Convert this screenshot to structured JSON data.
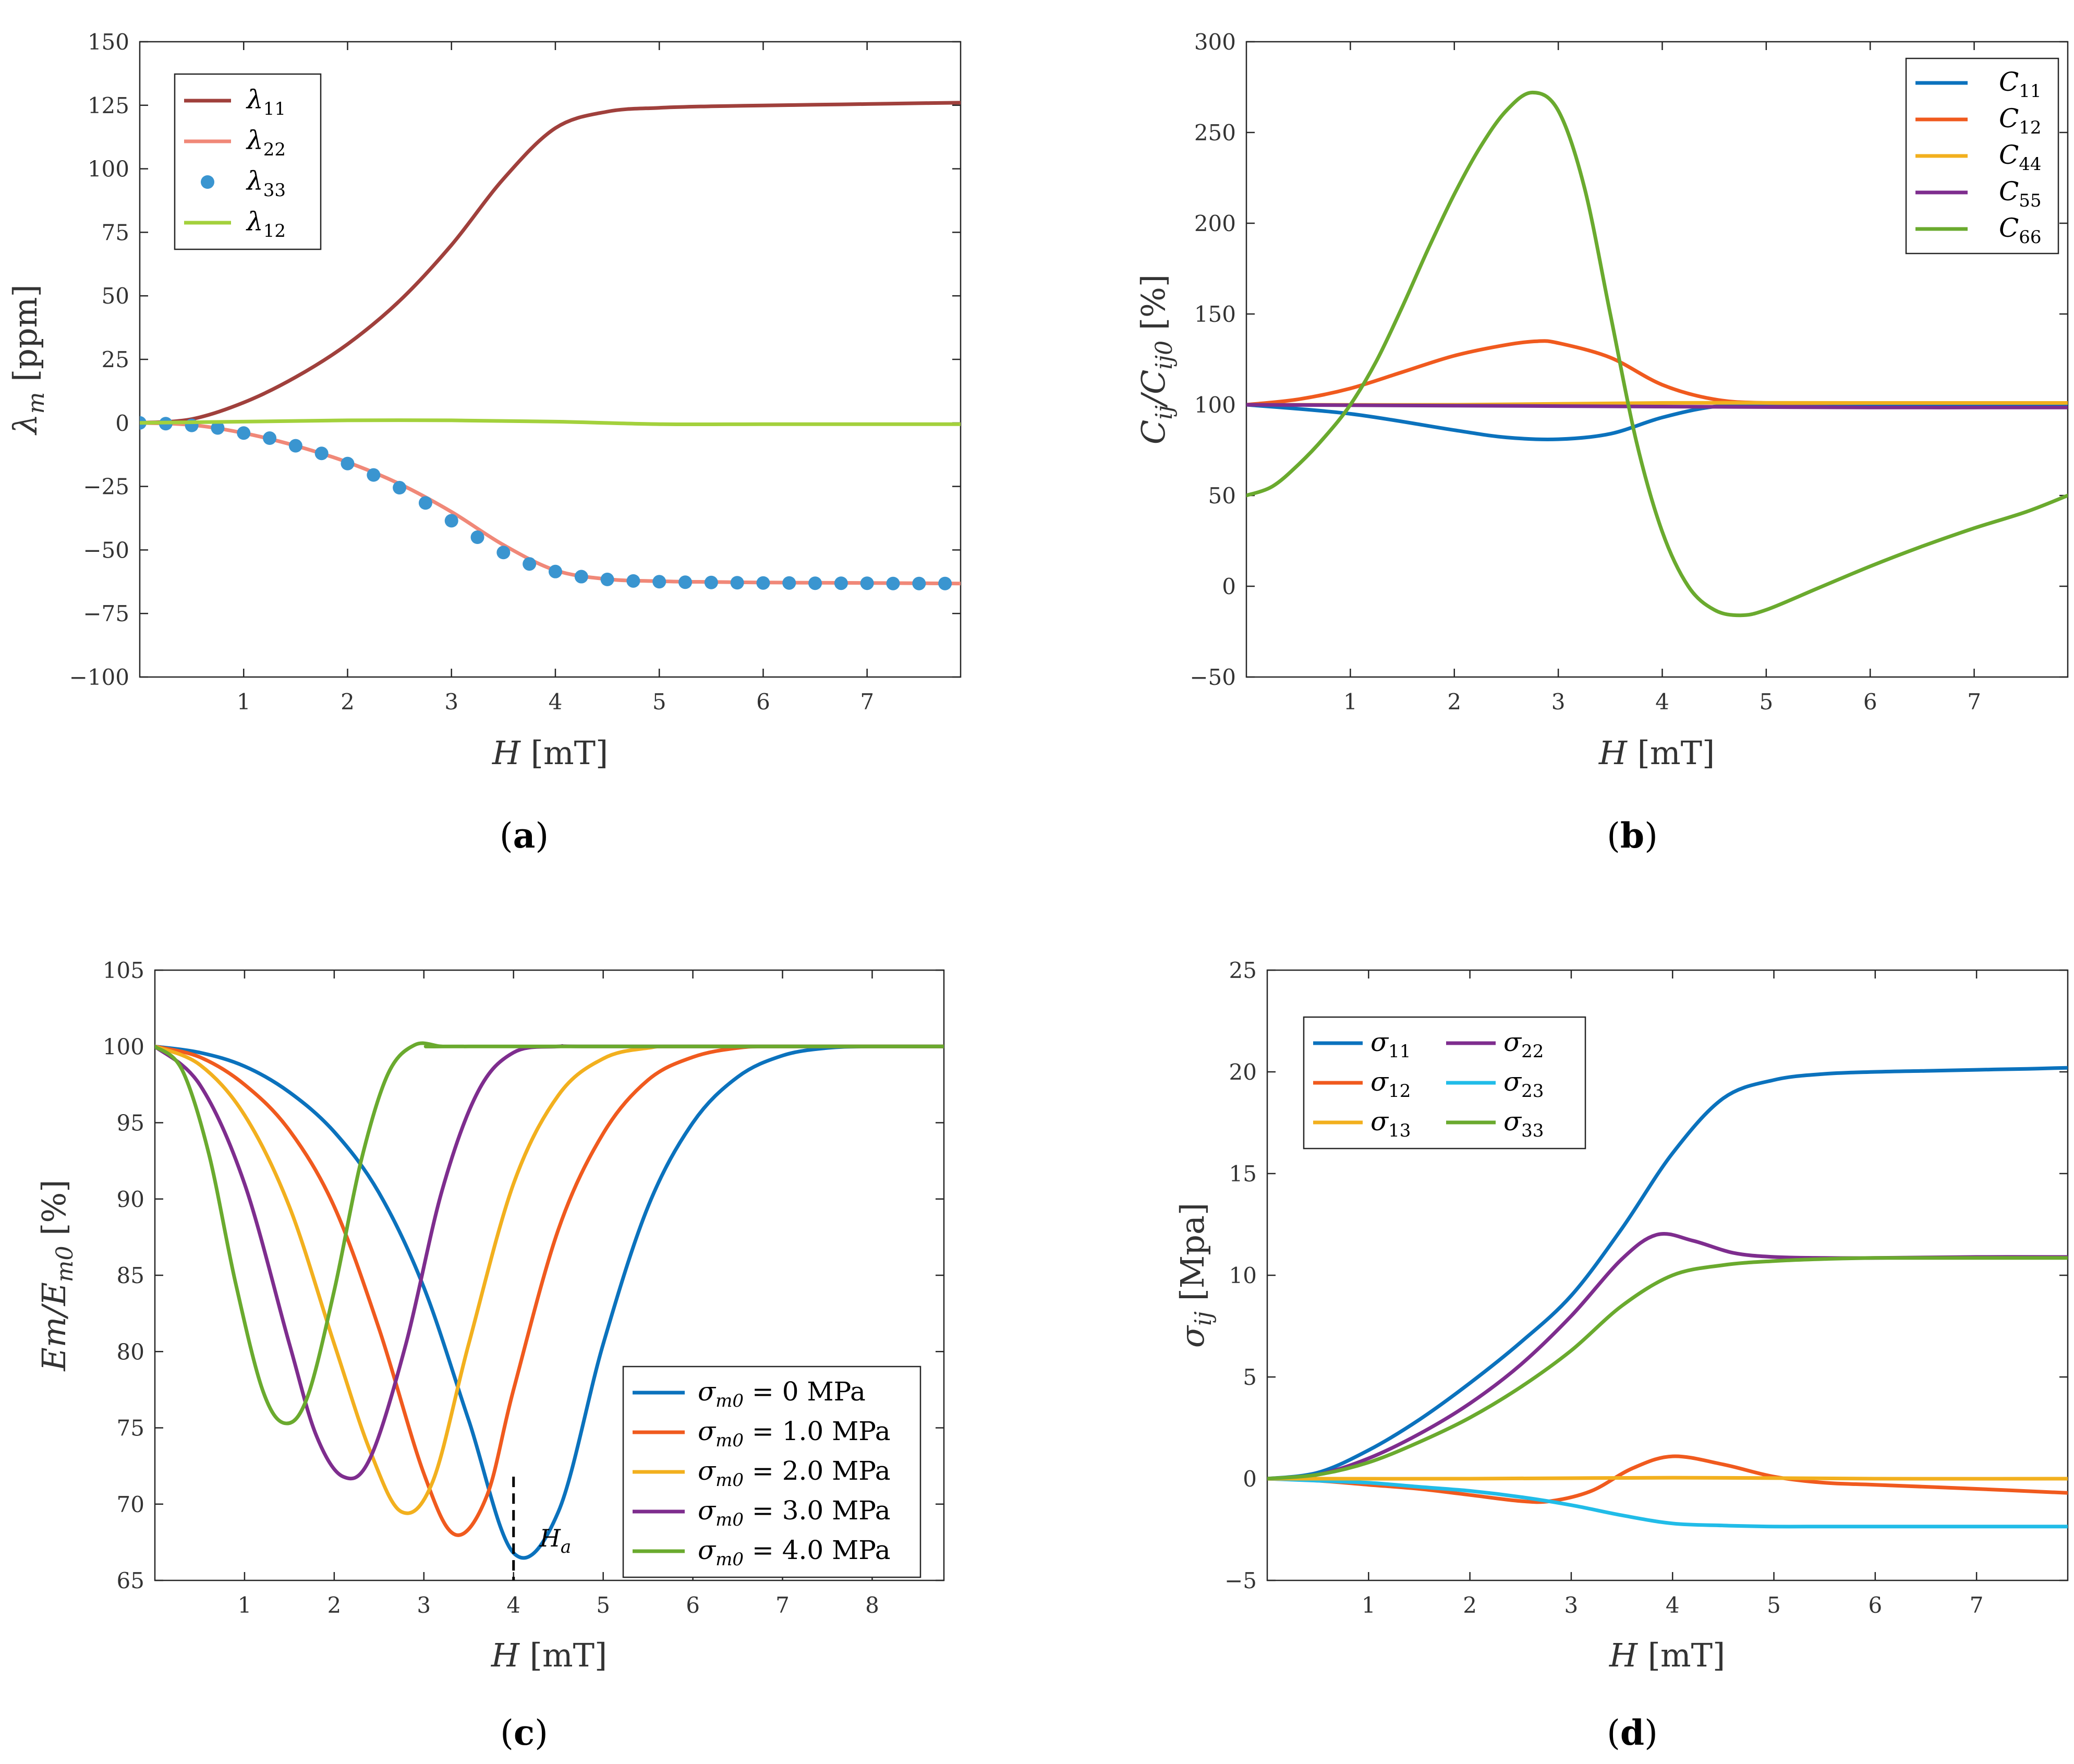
{
  "figure": {
    "panels": [
      {
        "id": "a",
        "caption_open": "(",
        "caption_letter": "a",
        "caption_close": ")"
      },
      {
        "id": "b",
        "caption_open": "(",
        "caption_letter": "b",
        "caption_close": ")"
      },
      {
        "id": "c",
        "caption_open": "(",
        "caption_letter": "c",
        "caption_close": ")"
      },
      {
        "id": "d",
        "caption_open": "(",
        "caption_letter": "d",
        "caption_close": ")"
      }
    ]
  },
  "chart_data": [
    {
      "id": "a",
      "type": "line",
      "xlabel": "H [mT]",
      "ylabel": "λm [ppm]",
      "xlim": [
        0,
        7.9
      ],
      "ylim": [
        -100,
        150
      ],
      "xticks": [
        1,
        2,
        3,
        4,
        5,
        6,
        7
      ],
      "xtick_labels": [
        "1",
        "2",
        "3",
        "4",
        "5",
        "6",
        "7"
      ],
      "yticks": [
        -100,
        -75,
        -50,
        -25,
        0,
        25,
        50,
        75,
        100,
        125,
        150
      ],
      "ytick_labels": [
        "−100",
        "−75",
        "−50",
        "−25",
        "0",
        "25",
        "50",
        "75",
        "100",
        "125",
        "150"
      ],
      "legend_position": "top-left",
      "series": [
        {
          "name": "λ11",
          "color": "#a0403c",
          "style": "line",
          "x": [
            0,
            0.5,
            1,
            1.5,
            2,
            2.5,
            3,
            3.5,
            4,
            4.5,
            5,
            5.5,
            6,
            6.5,
            7,
            7.5,
            7.9
          ],
          "y": [
            0,
            1.5,
            8,
            18,
            31,
            48,
            70,
            96,
            116,
            122.5,
            124,
            124.6,
            124.9,
            125.2,
            125.5,
            125.8,
            126
          ]
        },
        {
          "name": "λ22",
          "color": "#f08878",
          "style": "line",
          "x": [
            0,
            0.5,
            1,
            1.5,
            2,
            2.5,
            3,
            3.5,
            4,
            4.5,
            5,
            5.5,
            6,
            6.5,
            7,
            7.5,
            7.9
          ],
          "y": [
            0,
            -0.8,
            -4,
            -9,
            -15.5,
            -24,
            -35,
            -48,
            -58,
            -61.5,
            -62.3,
            -62.6,
            -62.8,
            -62.9,
            -63,
            -63.1,
            -63.2
          ]
        },
        {
          "name": "λ33",
          "color": "#3a95d0",
          "style": "markers",
          "x": [
            0,
            0.25,
            0.5,
            0.75,
            1,
            1.25,
            1.5,
            1.75,
            2,
            2.25,
            2.5,
            2.75,
            3,
            3.25,
            3.5,
            3.75,
            4,
            4.25,
            4.5,
            4.75,
            5,
            5.25,
            5.5,
            5.75,
            6,
            6.25,
            6.5,
            6.75,
            7,
            7.25,
            7.5,
            7.75
          ],
          "y": [
            0,
            -0.3,
            -1,
            -2,
            -4,
            -6,
            -9,
            -12,
            -16,
            -20.5,
            -25.5,
            -31.5,
            -38.5,
            -45,
            -51,
            -55.5,
            -58.5,
            -60.5,
            -61.6,
            -62.2,
            -62.5,
            -62.7,
            -62.8,
            -62.9,
            -63,
            -63,
            -63.1,
            -63.1,
            -63.1,
            -63.2,
            -63.2,
            -63.2
          ]
        },
        {
          "name": "λ12",
          "color": "#a3d13c",
          "style": "line",
          "x": [
            0,
            1,
            2,
            3,
            4,
            5,
            6,
            7,
            7.9
          ],
          "y": [
            0,
            0.5,
            1,
            1,
            0.5,
            -0.5,
            -0.5,
            -0.5,
            -0.5
          ]
        }
      ],
      "legend": [
        {
          "base": "λ",
          "sub": "11"
        },
        {
          "base": "λ",
          "sub": "22"
        },
        {
          "base": "λ",
          "sub": "33"
        },
        {
          "base": "λ",
          "sub": "12"
        }
      ]
    },
    {
      "id": "b",
      "type": "line",
      "xlabel": "H [mT]",
      "ylabel": "Cij/Cij0 [%]",
      "xlim": [
        0,
        7.9
      ],
      "ylim": [
        -50,
        300
      ],
      "xticks": [
        1,
        2,
        3,
        4,
        5,
        6,
        7
      ],
      "xtick_labels": [
        "1",
        "2",
        "3",
        "4",
        "5",
        "6",
        "7"
      ],
      "yticks": [
        -50,
        0,
        50,
        100,
        150,
        200,
        250,
        300
      ],
      "ytick_labels": [
        "−50",
        "0",
        "50",
        "100",
        "150",
        "200",
        "250",
        "300"
      ],
      "legend_position": "top-right",
      "series": [
        {
          "name": "C11",
          "color": "#0b72bd",
          "style": "line",
          "x": [
            0,
            1,
            2,
            2.5,
            3,
            3.5,
            4,
            4.5,
            5,
            6,
            7,
            7.9
          ],
          "y": [
            100,
            95,
            86,
            82,
            81,
            84,
            93,
            99,
            100,
            100,
            100,
            100
          ]
        },
        {
          "name": "C12",
          "color": "#f05a1e",
          "style": "line",
          "x": [
            0,
            0.5,
            1,
            1.5,
            2,
            2.5,
            2.8,
            3,
            3.5,
            4,
            4.5,
            5,
            6,
            7,
            7.9
          ],
          "y": [
            100,
            103,
            109,
            118,
            127,
            133,
            135,
            134,
            126,
            111,
            103,
            101,
            101,
            101,
            101
          ]
        },
        {
          "name": "C44",
          "color": "#f2b01e",
          "style": "line",
          "x": [
            0,
            2,
            4,
            6,
            7.9
          ],
          "y": [
            100,
            100,
            101,
            101,
            101
          ]
        },
        {
          "name": "C55",
          "color": "#7e2d8e",
          "style": "line",
          "x": [
            0,
            2,
            4,
            6,
            7.9
          ],
          "y": [
            100,
            99.5,
            99,
            98.5,
            98.5
          ]
        },
        {
          "name": "C66",
          "color": "#6aaa2e",
          "style": "line",
          "x": [
            0,
            0.25,
            0.5,
            0.75,
            1,
            1.25,
            1.5,
            1.75,
            2,
            2.25,
            2.5,
            2.75,
            3,
            3.25,
            3.5,
            3.75,
            4,
            4.25,
            4.5,
            4.75,
            5,
            5.5,
            6,
            6.5,
            7,
            7.5,
            7.9
          ],
          "y": [
            50,
            55,
            67,
            82,
            100,
            124,
            154,
            186,
            216,
            242,
            262,
            272,
            262,
            220,
            150,
            80,
            30,
            0,
            -13,
            -16,
            -13,
            -1,
            11,
            22,
            32,
            41,
            50
          ]
        }
      ],
      "legend": [
        {
          "base": "C",
          "sub": "11"
        },
        {
          "base": "C",
          "sub": "12"
        },
        {
          "base": "C",
          "sub": "44"
        },
        {
          "base": "C",
          "sub": "55"
        },
        {
          "base": "C",
          "sub": "66"
        }
      ]
    },
    {
      "id": "c",
      "type": "line",
      "xlabel": "H [mT]",
      "ylabel": "Em/Em0 [%]",
      "xlim": [
        0,
        8.8
      ],
      "ylim": [
        65,
        105
      ],
      "xticks": [
        1,
        2,
        3,
        4,
        5,
        6,
        7,
        8
      ],
      "xtick_labels": [
        "1",
        "2",
        "3",
        "4",
        "5",
        "6",
        "7",
        "8"
      ],
      "yticks": [
        65,
        70,
        75,
        80,
        85,
        90,
        95,
        100,
        105
      ],
      "ytick_labels": [
        "65",
        "70",
        "75",
        "80",
        "85",
        "90",
        "95",
        "100",
        "105"
      ],
      "legend_position": "bottom-right",
      "annotation": {
        "label": "H",
        "sub": "a",
        "x": 4.0,
        "y_top": 71.8,
        "y_bottom": 65
      },
      "series": [
        {
          "name": "σm0 = 0 MPa",
          "color": "#0b72bd",
          "style": "line",
          "x": [
            0,
            0.5,
            1,
            1.5,
            2,
            2.5,
            3,
            3.5,
            4,
            4.5,
            5,
            5.5,
            6,
            6.5,
            7,
            7.5,
            8,
            8.8
          ],
          "y": [
            100,
            99.6,
            98.7,
            97,
            94.4,
            90.4,
            84.2,
            75.5,
            66.8,
            69.5,
            80.5,
            89.5,
            95,
            98,
            99.4,
            99.9,
            100,
            100
          ]
        },
        {
          "name": "σm0 = 1.0 MPa",
          "color": "#f05a1e",
          "style": "line",
          "x": [
            0,
            0.5,
            1,
            1.5,
            2,
            2.5,
            3,
            3.35,
            3.7,
            4,
            4.5,
            5,
            5.5,
            6,
            6.5,
            7,
            8.8
          ],
          "y": [
            100,
            99.3,
            97.5,
            94.5,
            89.5,
            81.5,
            72,
            68,
            70.5,
            77.5,
            88,
            94.3,
            97.8,
            99.3,
            99.9,
            100,
            100
          ]
        },
        {
          "name": "σm0 = 2.0 MPa",
          "color": "#f2b01e",
          "style": "line",
          "x": [
            0,
            0.5,
            1,
            1.5,
            2,
            2.4,
            2.75,
            3.1,
            3.5,
            4,
            4.5,
            5,
            5.5,
            6,
            8.8
          ],
          "y": [
            100,
            98.8,
            95.5,
            89.5,
            80.5,
            73.5,
            69.5,
            71.5,
            80.5,
            91,
            96.8,
            99.2,
            99.9,
            100,
            100
          ]
        },
        {
          "name": "σm0 = 3.0 MPa",
          "color": "#7e2d8e",
          "style": "line",
          "x": [
            0,
            0.5,
            1,
            1.5,
            1.8,
            2.1,
            2.4,
            2.8,
            3.2,
            3.6,
            4,
            4.5,
            5,
            8.8
          ],
          "y": [
            100,
            97.5,
            91,
            80.5,
            74.5,
            71.8,
            73,
            80.5,
            90.5,
            97,
            99.6,
            100,
            100,
            100
          ]
        },
        {
          "name": "σm0 = 4.0 MPa",
          "color": "#6aaa2e",
          "style": "line",
          "x": [
            0,
            0.3,
            0.6,
            0.9,
            1.2,
            1.45,
            1.7,
            2,
            2.3,
            2.6,
            2.9,
            3.2,
            3.5,
            8.8
          ],
          "y": [
            100,
            98.5,
            93,
            84.5,
            77.5,
            75.3,
            77,
            84,
            92.5,
            98.2,
            100.1,
            100,
            100,
            100
          ]
        }
      ],
      "legend": [
        {
          "text": "σm0 = 0 MPa"
        },
        {
          "text": "σm0 = 1.0 MPa"
        },
        {
          "text": "σm0 = 2.0 MPa"
        },
        {
          "text": "σm0 = 3.0 MPa"
        },
        {
          "text": "σm0 = 4.0 MPa"
        }
      ]
    },
    {
      "id": "d",
      "type": "line",
      "xlabel": "H [mT]",
      "ylabel": "σij [Mpa]",
      "xlim": [
        0,
        7.9
      ],
      "ylim": [
        -5,
        25
      ],
      "xticks": [
        1,
        2,
        3,
        4,
        5,
        6,
        7
      ],
      "xtick_labels": [
        "1",
        "2",
        "3",
        "4",
        "5",
        "6",
        "7"
      ],
      "yticks": [
        -5,
        0,
        5,
        10,
        15,
        20,
        25
      ],
      "ytick_labels": [
        "−5",
        "0",
        "5",
        "10",
        "15",
        "20",
        "25"
      ],
      "legend_position": "top-left",
      "series": [
        {
          "name": "σ11",
          "color": "#0b72bd",
          "style": "line",
          "x": [
            0,
            0.5,
            1,
            1.5,
            2,
            2.5,
            3,
            3.5,
            4,
            4.5,
            5,
            5.5,
            6,
            6.5,
            7,
            7.5,
            7.9
          ],
          "y": [
            0,
            0.3,
            1.4,
            2.9,
            4.7,
            6.7,
            9,
            12.3,
            16,
            18.7,
            19.6,
            19.9,
            20,
            20.05,
            20.1,
            20.15,
            20.2
          ]
        },
        {
          "name": "σ22",
          "color": "#7e2d8e",
          "style": "line",
          "x": [
            0,
            0.5,
            1,
            1.5,
            2,
            2.5,
            3,
            3.5,
            3.85,
            4.2,
            4.6,
            5,
            5.5,
            6,
            7,
            7.9
          ],
          "y": [
            0,
            0.2,
            1,
            2.2,
            3.7,
            5.6,
            8,
            10.8,
            12,
            11.7,
            11.1,
            10.9,
            10.85,
            10.85,
            10.9,
            10.9
          ]
        },
        {
          "name": "σ12",
          "color": "#f05a1e",
          "style": "line",
          "x": [
            0,
            0.5,
            1,
            1.5,
            2,
            2.5,
            2.8,
            3.2,
            3.6,
            4,
            4.5,
            5,
            5.5,
            6,
            7,
            7.9
          ],
          "y": [
            0,
            -0.1,
            -0.3,
            -0.5,
            -0.8,
            -1.1,
            -1.1,
            -0.6,
            0.5,
            1.1,
            0.7,
            0.1,
            -0.2,
            -0.3,
            -0.5,
            -0.7
          ]
        },
        {
          "name": "σ23",
          "color": "#21bce8",
          "style": "line",
          "x": [
            0,
            0.5,
            1,
            1.5,
            2,
            2.5,
            3,
            3.5,
            4,
            4.5,
            5,
            5.5,
            6,
            7,
            7.9
          ],
          "y": [
            0,
            -0.1,
            -0.2,
            -0.4,
            -0.6,
            -0.9,
            -1.3,
            -1.8,
            -2.2,
            -2.3,
            -2.35,
            -2.35,
            -2.35,
            -2.35,
            -2.35
          ]
        },
        {
          "name": "σ13",
          "color": "#f2b01e",
          "style": "line",
          "x": [
            0,
            2,
            4,
            6,
            7.9
          ],
          "y": [
            0,
            0,
            0.05,
            0,
            0
          ]
        },
        {
          "name": "σ33",
          "color": "#6aaa2e",
          "style": "line",
          "x": [
            0,
            0.5,
            1,
            1.5,
            2,
            2.5,
            3,
            3.5,
            4,
            4.5,
            5,
            5.5,
            6,
            7,
            7.9
          ],
          "y": [
            0,
            0.2,
            0.8,
            1.8,
            3,
            4.5,
            6.3,
            8.5,
            10,
            10.5,
            10.7,
            10.8,
            10.85,
            10.85,
            10.85
          ]
        }
      ],
      "legend": [
        {
          "base": "σ",
          "sub": "11"
        },
        {
          "base": "σ",
          "sub": "22"
        },
        {
          "base": "σ",
          "sub": "12"
        },
        {
          "base": "σ",
          "sub": "23"
        },
        {
          "base": "σ",
          "sub": "13"
        },
        {
          "base": "σ",
          "sub": "33"
        }
      ]
    }
  ]
}
